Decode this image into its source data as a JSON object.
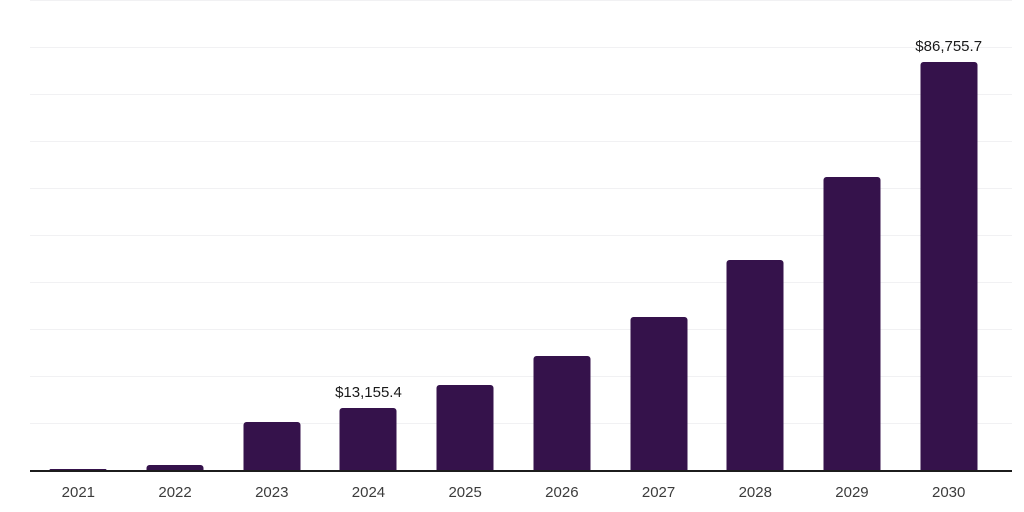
{
  "page": {
    "background_color": "#ffffff"
  },
  "chart_data": {
    "type": "bar",
    "title": "",
    "xlabel": "",
    "ylabel": "",
    "categories": [
      "2021",
      "2022",
      "2023",
      "2024",
      "2025",
      "2026",
      "2027",
      "2028",
      "2029",
      "2030"
    ],
    "values": [
      200,
      1100,
      10300,
      13155.4,
      18000,
      24200,
      32500,
      44700,
      62300,
      86755.7
    ],
    "data_labels": [
      "",
      "",
      "",
      "$13,155.4",
      "",
      "",
      "",
      "",
      "",
      "$86,755.7"
    ],
    "ylim": [
      0,
      100000
    ],
    "gridline_interval": 10000,
    "grid": "horizontal",
    "y_tick_labels_shown": false,
    "legend": "none",
    "bar_color": "#35124B"
  },
  "colors": {
    "bar": "#35124B",
    "gridline": "#f1f1f3",
    "axis_line": "#1c1c1c",
    "data_label_text": "#1a1a1a",
    "tick_label_text": "#3c3c3c",
    "background": "#ffffff"
  }
}
